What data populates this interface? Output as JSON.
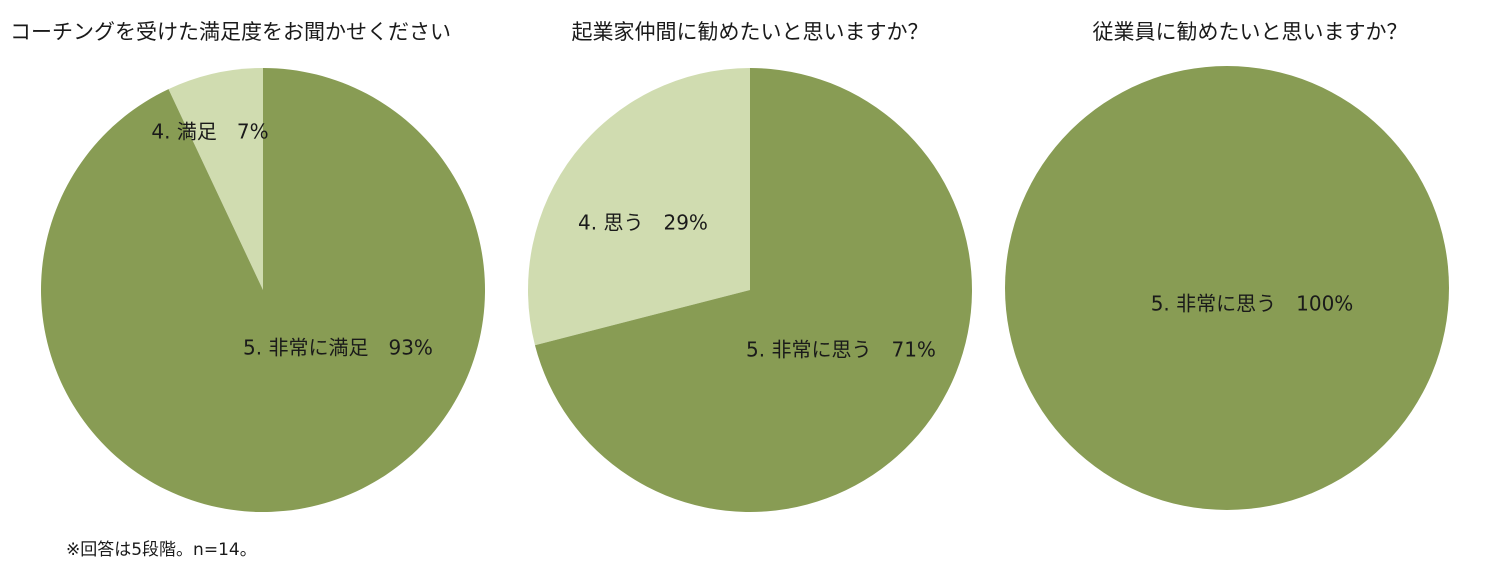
{
  "colors": {
    "dark_green": "#889c54",
    "light_green": "#d0dcb0",
    "separator": "#ffffff"
  },
  "chart_data": [
    {
      "type": "pie",
      "title": "コーチングを受けた満足度をお聞かせください",
      "slices": [
        {
          "label": "4. 満足　7%",
          "value": 7,
          "color": "#d0dcb0"
        },
        {
          "label": "5. 非常に満足　93%",
          "value": 93,
          "color": "#889c54"
        }
      ],
      "start": "top, counter-clockwise for first slice"
    },
    {
      "type": "pie",
      "title": "起業家仲間に勧めたいと思いますか？",
      "slices": [
        {
          "label": "4. 思う　29%",
          "value": 29,
          "color": "#d0dcb0"
        },
        {
          "label": "5. 非常に思う　71%",
          "value": 71,
          "color": "#889c54"
        }
      ],
      "start": "top, counter-clockwise for first slice"
    },
    {
      "type": "pie",
      "title": "従業員に勧めたいと思いますか？",
      "slices": [
        {
          "label": "5. 非常に思う　100%",
          "value": 100,
          "color": "#889c54"
        }
      ],
      "start": "top"
    }
  ],
  "footnote": "※回答は5段階。n=14。"
}
